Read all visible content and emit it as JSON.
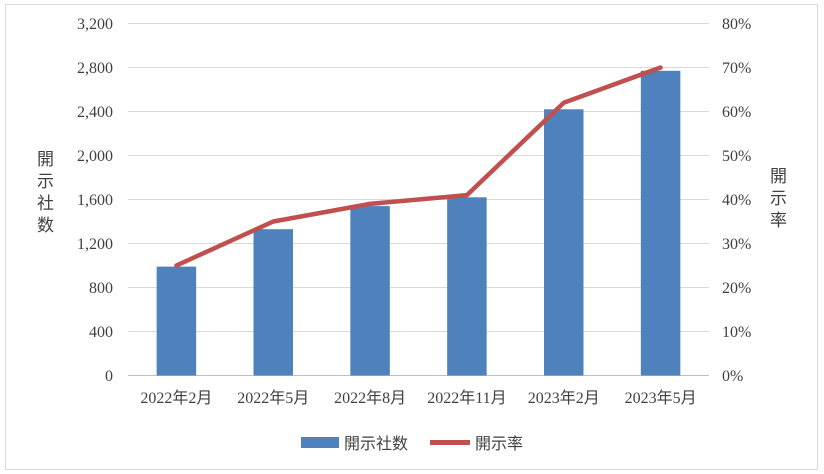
{
  "chart_data": {
    "type": "combo-bar-line",
    "title": "",
    "categories": [
      "2022年2月",
      "2022年5月",
      "2022年8月",
      "2022年11月",
      "2023年2月",
      "2023年5月"
    ],
    "series": [
      {
        "name": "開示社数",
        "type": "bar",
        "axis": "left",
        "color": "#4F81BD",
        "values": [
          990,
          1330,
          1540,
          1620,
          2420,
          2770
        ]
      },
      {
        "name": "開示率",
        "type": "line",
        "axis": "right",
        "color": "#C0504D",
        "unit": "%",
        "values": [
          25,
          35,
          39,
          41,
          62,
          70
        ]
      }
    ],
    "left_axis": {
      "title": "開示社数",
      "min": 0,
      "max": 3200,
      "step": 400,
      "tick_labels": [
        "0",
        "400",
        "800",
        "1,200",
        "1,600",
        "2,000",
        "2,400",
        "2,800",
        "3,200"
      ]
    },
    "right_axis": {
      "title": "開示率",
      "min": 0,
      "max": 80,
      "step": 10,
      "tick_labels": [
        "0%",
        "10%",
        "20%",
        "30%",
        "40%",
        "50%",
        "60%",
        "70%",
        "80%"
      ]
    },
    "legend": {
      "position": "bottom",
      "items": [
        "開示社数",
        "開示率"
      ]
    },
    "grid": {
      "show": true,
      "color": "#D9D9D9"
    },
    "axis_line_color": "#BFBFBF",
    "text_color": "#404040",
    "frame_border_color": "#D9D9D9"
  }
}
